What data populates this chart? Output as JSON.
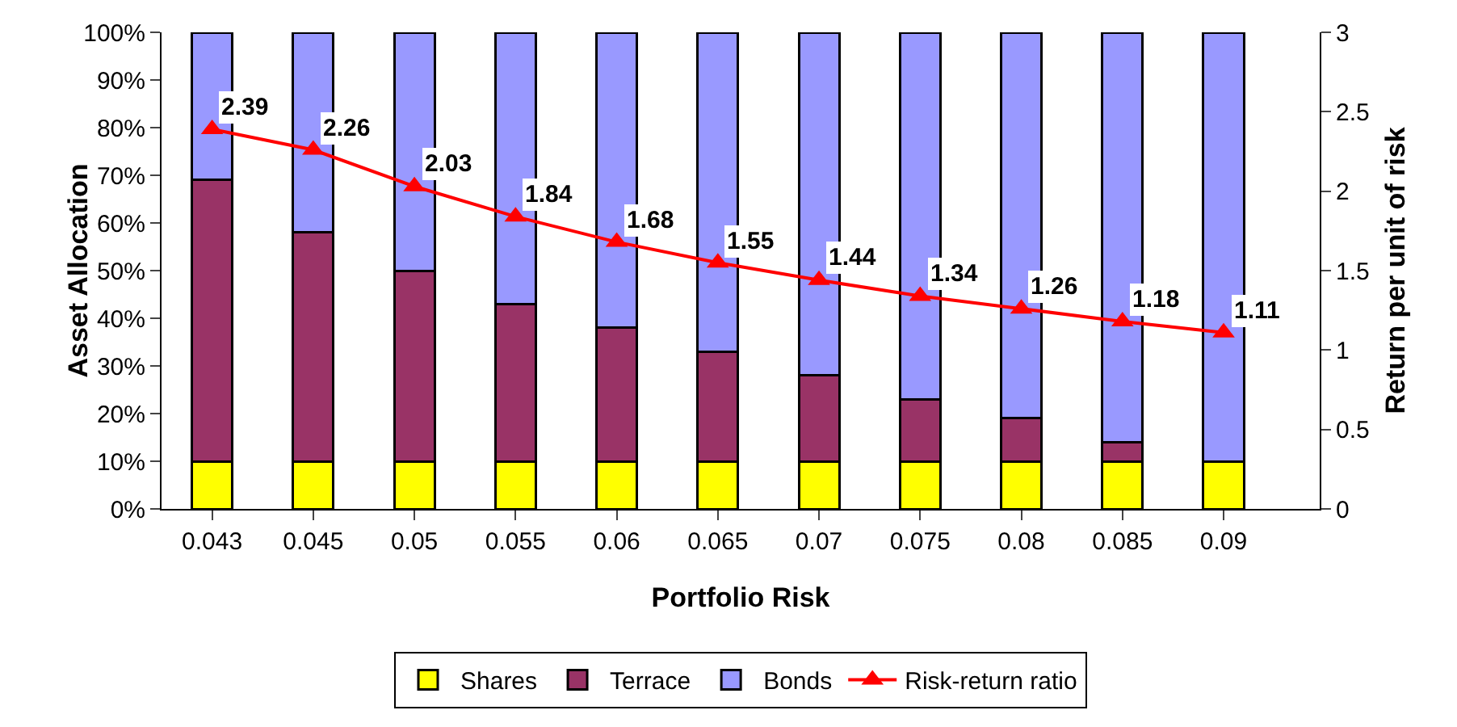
{
  "chart_data": {
    "type": "bar",
    "stacked": true,
    "xlabel": "Portfolio Risk",
    "ylabel": "Asset Allocation",
    "y2label": "Return per unit of risk",
    "categories": [
      "0.043",
      "0.045",
      "0.05",
      "0.055",
      "0.06",
      "0.065",
      "0.07",
      "0.075",
      "0.08",
      "0.085",
      "0.09"
    ],
    "series": [
      {
        "name": "Shares",
        "color": "#ffff00",
        "values": [
          10,
          10,
          10,
          10,
          10,
          10,
          10,
          10,
          10,
          10,
          10
        ]
      },
      {
        "name": "Terrace",
        "color": "#993366",
        "values": [
          59,
          48,
          40,
          33,
          28,
          23,
          18,
          13,
          9,
          4,
          0
        ]
      },
      {
        "name": "Bonds",
        "color": "#9999ff",
        "values": [
          31,
          42,
          50,
          57,
          62,
          67,
          72,
          77,
          81,
          86,
          90
        ]
      },
      {
        "name": "Risk-return ratio",
        "type": "line",
        "axis": "y2",
        "color": "#ff0000",
        "marker": "triangle",
        "values": [
          2.39,
          2.26,
          2.03,
          1.84,
          1.68,
          1.55,
          1.44,
          1.34,
          1.26,
          1.18,
          1.11
        ],
        "value_labels": [
          "2.39",
          "2.26",
          "2.03",
          "1.84",
          "1.68",
          "1.55",
          "1.44",
          "1.34",
          "1.26",
          "1.18",
          "1.11"
        ]
      }
    ],
    "ylim": [
      0,
      100
    ],
    "yticks": [
      {
        "value": 0,
        "label": "0%"
      },
      {
        "value": 10,
        "label": "10%"
      },
      {
        "value": 20,
        "label": "20%"
      },
      {
        "value": 30,
        "label": "30%"
      },
      {
        "value": 40,
        "label": "40%"
      },
      {
        "value": 50,
        "label": "50%"
      },
      {
        "value": 60,
        "label": "60%"
      },
      {
        "value": 70,
        "label": "70%"
      },
      {
        "value": 80,
        "label": "80%"
      },
      {
        "value": 90,
        "label": "90%"
      },
      {
        "value": 100,
        "label": "100%"
      }
    ],
    "y2lim": [
      0,
      3
    ],
    "y2ticks": [
      0,
      0.5,
      1,
      1.5,
      2,
      2.5,
      3
    ],
    "legend": "bottom",
    "grid": false
  }
}
